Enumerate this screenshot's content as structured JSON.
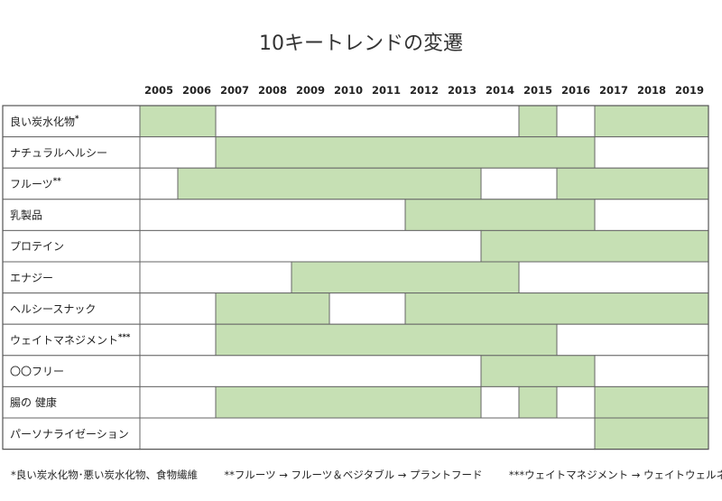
{
  "title": "10キートレンドの変遷",
  "chart_data": {
    "type": "table",
    "title": "10キートレンドの変遷",
    "years": [
      "2005",
      "2006",
      "2007",
      "2008",
      "2009",
      "2010",
      "2011",
      "2012",
      "2013",
      "2014",
      "2015",
      "2016",
      "2017",
      "2018",
      "2019"
    ],
    "highlight_color": "#c6e0b4",
    "rows": [
      {
        "label": "良い炭水化物",
        "marker": "*",
        "active": [
          "2005",
          "2006",
          "2015",
          "2017",
          "2018",
          "2019"
        ]
      },
      {
        "label": "ナチュラルヘルシー",
        "marker": "",
        "active": [
          "2007",
          "2008",
          "2009",
          "2010",
          "2011",
          "2012",
          "2013",
          "2014",
          "2015",
          "2016"
        ]
      },
      {
        "label": "フルーツ",
        "marker": "**",
        "active": [
          "2006",
          "2007",
          "2008",
          "2009",
          "2010",
          "2011",
          "2012",
          "2013",
          "2016",
          "2017",
          "2018",
          "2019"
        ]
      },
      {
        "label": "乳製品",
        "marker": "",
        "active": [
          "2012",
          "2013",
          "2014",
          "2015",
          "2016"
        ]
      },
      {
        "label": "プロテイン",
        "marker": "",
        "active": [
          "2014",
          "2015",
          "2016",
          "2017",
          "2018",
          "2019"
        ]
      },
      {
        "label": "エナジー",
        "marker": "",
        "active": [
          "2009",
          "2010",
          "2011",
          "2012",
          "2013",
          "2014"
        ]
      },
      {
        "label": "ヘルシースナック",
        "marker": "",
        "active": [
          "2007",
          "2008",
          "2009",
          "2012",
          "2013",
          "2014",
          "2015",
          "2016",
          "2017",
          "2018",
          "2019"
        ]
      },
      {
        "label": "ウェイトマネジメント",
        "marker": "***",
        "active": [
          "2007",
          "2008",
          "2009",
          "2010",
          "2011",
          "2012",
          "2013",
          "2014",
          "2015"
        ]
      },
      {
        "label": "〇〇フリー",
        "marker": "",
        "active": [
          "2014",
          "2015",
          "2016"
        ]
      },
      {
        "label": "腸の 健康",
        "marker": "",
        "active": [
          "2007",
          "2008",
          "2009",
          "2010",
          "2011",
          "2012",
          "2013",
          "2015",
          "2017",
          "2018",
          "2019"
        ]
      },
      {
        "label": "パーソナライゼーション",
        "marker": "",
        "active": [
          "2017",
          "2018",
          "2019"
        ]
      }
    ]
  },
  "footnotes": [
    "*良い炭水化物･悪い炭水化物、食物繊維",
    "**フルーツ → フルーツ＆ベジタブル → プラントフード",
    "***ウェイトマネジメント → ウェイトウェルネス"
  ]
}
